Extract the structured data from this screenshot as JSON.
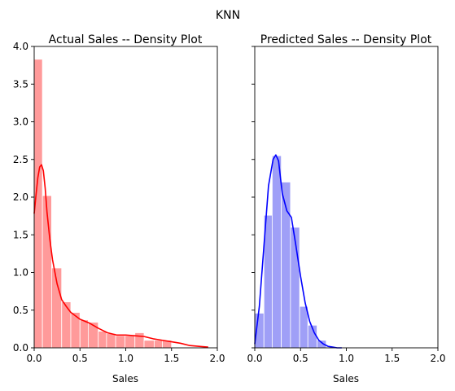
{
  "figure": {
    "suptitle": "KNN"
  },
  "chart_data": [
    {
      "type": "histogram+density",
      "title": "Actual Sales -- Density Plot",
      "xlabel": "Sales",
      "ylabel": "",
      "xlim": [
        0,
        2.0
      ],
      "ylim": [
        0,
        4.0
      ],
      "xticks": [
        0.0,
        0.5,
        1.0,
        1.5,
        2.0
      ],
      "yticks": [
        0.0,
        0.5,
        1.0,
        1.5,
        2.0,
        2.5,
        3.0,
        3.5,
        4.0
      ],
      "tick_labels_shown": {
        "x": true,
        "y": true
      },
      "colors": {
        "fill": "#ff9a9a",
        "line": "#ff0000"
      },
      "histogram": [
        {
          "x0": 0.0,
          "x1": 0.09,
          "density": 3.83
        },
        {
          "x0": 0.09,
          "x1": 0.19,
          "density": 2.02
        },
        {
          "x0": 0.19,
          "x1": 0.3,
          "density": 1.06
        },
        {
          "x0": 0.3,
          "x1": 0.4,
          "density": 0.61
        },
        {
          "x0": 0.4,
          "x1": 0.5,
          "density": 0.47
        },
        {
          "x0": 0.5,
          "x1": 0.59,
          "density": 0.37
        },
        {
          "x0": 0.59,
          "x1": 0.7,
          "density": 0.34
        },
        {
          "x0": 0.7,
          "x1": 0.79,
          "density": 0.22
        },
        {
          "x0": 0.79,
          "x1": 0.89,
          "density": 0.19
        },
        {
          "x0": 0.89,
          "x1": 0.99,
          "density": 0.16
        },
        {
          "x0": 0.99,
          "x1": 1.1,
          "density": 0.16
        },
        {
          "x0": 1.1,
          "x1": 1.2,
          "density": 0.2
        },
        {
          "x0": 1.2,
          "x1": 1.31,
          "density": 0.1
        },
        {
          "x0": 1.31,
          "x1": 1.4,
          "density": 0.1
        },
        {
          "x0": 1.4,
          "x1": 1.5,
          "density": 0.1
        }
      ],
      "density_curve": {
        "x": [
          0.0,
          0.02,
          0.04,
          0.06,
          0.08,
          0.1,
          0.12,
          0.14,
          0.17,
          0.2,
          0.25,
          0.3,
          0.35,
          0.4,
          0.5,
          0.6,
          0.7,
          0.8,
          0.9,
          1.0,
          1.1,
          1.2,
          1.3,
          1.4,
          1.5,
          1.6,
          1.7,
          1.8,
          1.9
        ],
        "y": [
          1.78,
          2.03,
          2.26,
          2.4,
          2.43,
          2.35,
          2.12,
          1.8,
          1.45,
          1.17,
          0.85,
          0.64,
          0.55,
          0.47,
          0.38,
          0.33,
          0.26,
          0.2,
          0.17,
          0.17,
          0.16,
          0.15,
          0.12,
          0.1,
          0.08,
          0.06,
          0.03,
          0.02,
          0.01
        ]
      }
    },
    {
      "type": "histogram+density",
      "title": "Predicted Sales -- Density Plot",
      "xlabel": "Sales",
      "ylabel": "",
      "xlim": [
        0,
        2.0
      ],
      "ylim": [
        0,
        4.0
      ],
      "xticks": [
        0.0,
        0.5,
        1.0,
        1.5,
        2.0
      ],
      "yticks": [
        0.0,
        0.5,
        1.0,
        1.5,
        2.0,
        2.5,
        3.0,
        3.5,
        4.0
      ],
      "tick_labels_shown": {
        "x": true,
        "y": false
      },
      "colors": {
        "fill": "#9f9ff7",
        "line": "#0000ff"
      },
      "histogram": [
        {
          "x0": 0.0,
          "x1": 0.1,
          "density": 0.46
        },
        {
          "x0": 0.1,
          "x1": 0.19,
          "density": 1.76
        },
        {
          "x0": 0.19,
          "x1": 0.29,
          "density": 2.55
        },
        {
          "x0": 0.29,
          "x1": 0.39,
          "density": 2.2
        },
        {
          "x0": 0.39,
          "x1": 0.49,
          "density": 1.6
        },
        {
          "x0": 0.49,
          "x1": 0.58,
          "density": 0.55
        },
        {
          "x0": 0.58,
          "x1": 0.68,
          "density": 0.3
        },
        {
          "x0": 0.68,
          "x1": 0.78,
          "density": 0.1
        }
      ],
      "density_curve": {
        "x": [
          0.0,
          0.05,
          0.1,
          0.15,
          0.2,
          0.23,
          0.26,
          0.3,
          0.35,
          0.4,
          0.45,
          0.5,
          0.55,
          0.6,
          0.65,
          0.7,
          0.75,
          0.8,
          0.85,
          0.9,
          0.95
        ],
        "y": [
          0.05,
          0.55,
          1.35,
          2.15,
          2.5,
          2.56,
          2.48,
          2.05,
          1.82,
          1.73,
          1.35,
          0.95,
          0.6,
          0.35,
          0.2,
          0.1,
          0.05,
          0.02,
          0.01,
          0.0,
          0.0
        ]
      }
    }
  ]
}
